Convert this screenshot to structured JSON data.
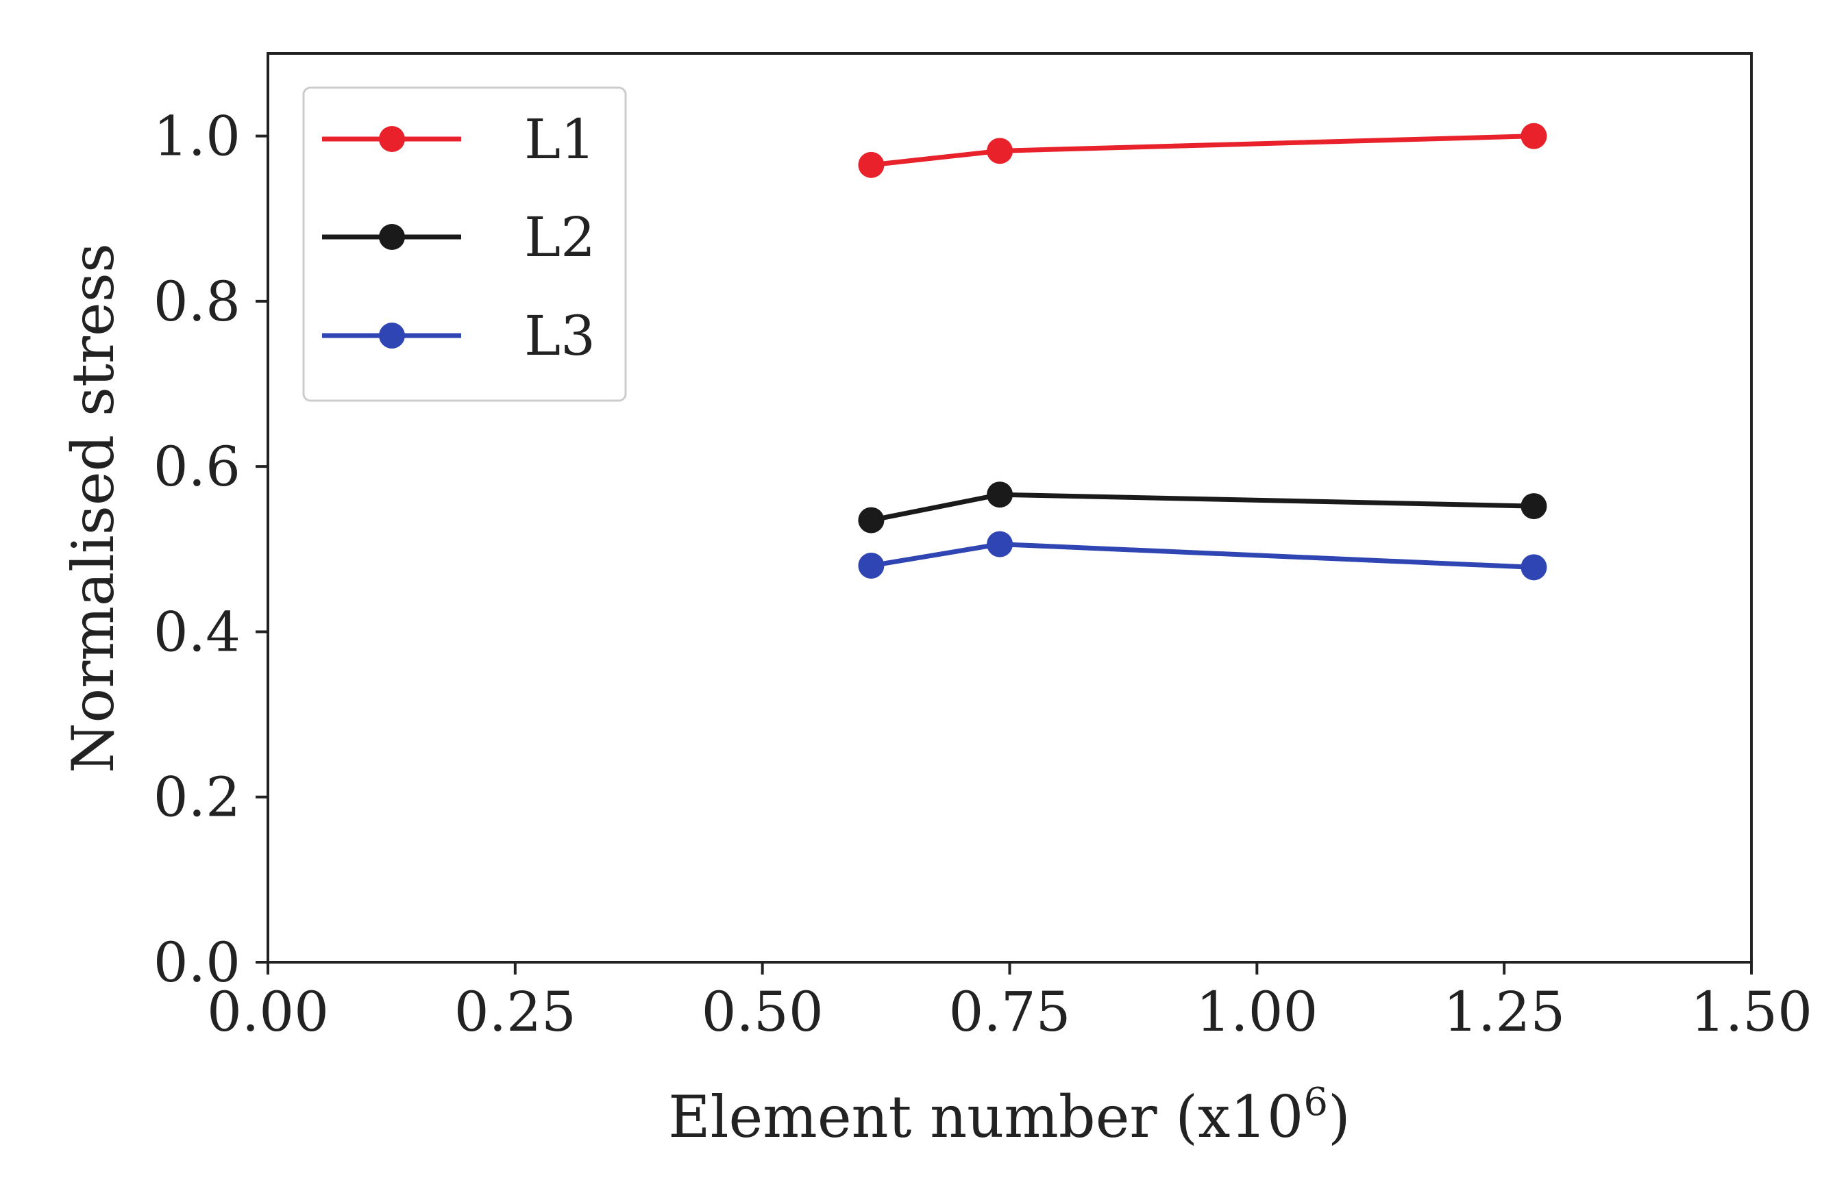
{
  "chart_data": {
    "type": "line",
    "title": "",
    "xlabel": "Element number (x10",
    "xlabel_exponent": "6",
    "xlabel_suffix": ")",
    "ylabel": "Normalised stress",
    "xlim": [
      0.0,
      1.5
    ],
    "ylim": [
      0.0,
      1.1
    ],
    "xticks": [
      0.0,
      0.25,
      0.5,
      0.75,
      1.0,
      1.25,
      1.5
    ],
    "xtick_labels": [
      "0.00",
      "0.25",
      "0.50",
      "0.75",
      "1.00",
      "1.25",
      "1.50"
    ],
    "yticks": [
      0.0,
      0.2,
      0.4,
      0.6,
      0.8,
      1.0
    ],
    "ytick_labels": [
      "0.0",
      "0.2",
      "0.4",
      "0.6",
      "0.8",
      "1.0"
    ],
    "grid": false,
    "legend_position": "top-left",
    "x": [
      0.61,
      0.74,
      1.28
    ],
    "series": [
      {
        "name": "L1",
        "color": "#e8212b",
        "values": [
          0.965,
          0.982,
          1.0
        ]
      },
      {
        "name": "L2",
        "color": "#1a1a1a",
        "values": [
          0.535,
          0.566,
          0.552
        ]
      },
      {
        "name": "L3",
        "color": "#2f45b3",
        "values": [
          0.48,
          0.506,
          0.478
        ]
      }
    ]
  }
}
